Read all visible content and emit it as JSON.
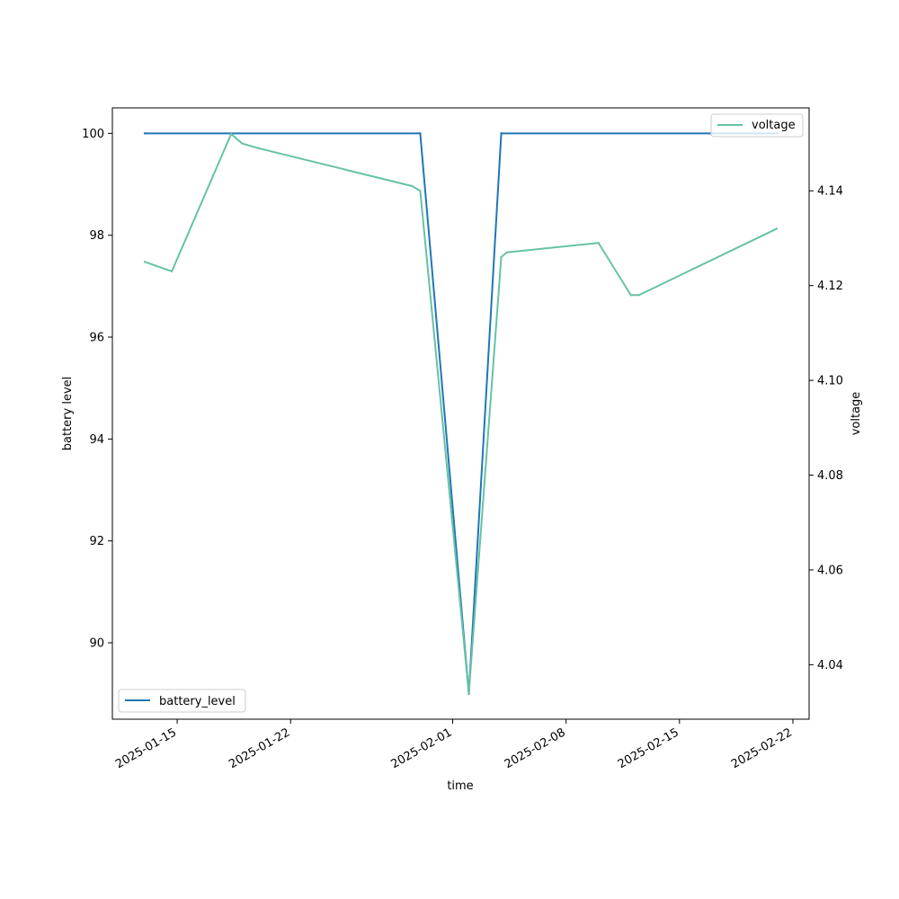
{
  "chart_data": {
    "type": "line",
    "xlabel": "time",
    "x_tick_labels": [
      "2025-01-15",
      "2025-01-22",
      "2025-02-01",
      "2025-02-08",
      "2025-02-15",
      "2025-02-22"
    ],
    "x_tick_dates": [
      "2025-01-15",
      "2025-01-22",
      "2025-02-01",
      "2025-02-08",
      "2025-02-15",
      "2025-02-22"
    ],
    "xlim": [
      "2025-01-11",
      "2025-02-23"
    ],
    "left_axis": {
      "label": "battery level",
      "ylim": [
        88.5,
        100.5
      ],
      "ticks": [
        90,
        92,
        94,
        96,
        98,
        100
      ],
      "tick_labels": [
        "90",
        "92",
        "94",
        "96",
        "98",
        "100"
      ]
    },
    "right_axis": {
      "label": "voltage",
      "ylim": [
        4.0285,
        4.1575
      ],
      "ticks": [
        4.04,
        4.06,
        4.08,
        4.1,
        4.12,
        4.14
      ],
      "tick_labels": [
        "4.04",
        "4.06",
        "4.08",
        "4.10",
        "4.12",
        "4.14"
      ]
    },
    "series": [
      {
        "name": "battery_level",
        "axis": "left",
        "color": "#1f77b4",
        "x": [
          "2025-01-13",
          "2025-01-30",
          "2025-02-02",
          "2025-02-04",
          "2025-02-21"
        ],
        "y": [
          100,
          100,
          89,
          100,
          100
        ]
      },
      {
        "name": "voltage",
        "axis": "right",
        "color": "#66c2a5",
        "x": [
          "2025-01-13",
          "2025-01-14 16:00",
          "2025-01-18 08:00",
          "2025-01-19",
          "2025-01-20",
          "2025-01-29 12:00",
          "2025-01-30",
          "2025-02-02",
          "2025-02-04",
          "2025-02-04 08:00",
          "2025-02-10",
          "2025-02-12",
          "2025-02-12 12:00",
          "2025-02-21"
        ],
        "y": [
          4.125,
          4.123,
          4.152,
          4.15,
          4.149,
          4.141,
          4.14,
          4.034,
          4.126,
          4.127,
          4.129,
          4.118,
          4.118,
          4.132
        ]
      }
    ],
    "legends": [
      {
        "series": "battery_level",
        "placement": "lower left"
      },
      {
        "series": "voltage",
        "placement": "upper right"
      }
    ]
  }
}
